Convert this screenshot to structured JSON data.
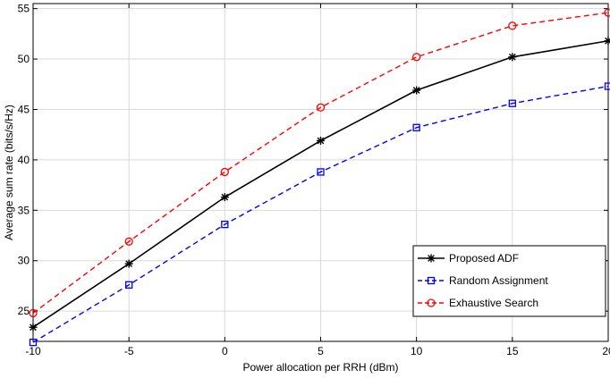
{
  "chart_data": {
    "type": "line",
    "title": "",
    "xlabel": "Power allocation per RRH (dBm)",
    "ylabel": "Average sum rate (bits/s/Hz)",
    "xlim": [
      -10,
      20
    ],
    "ylim": [
      22,
      55.5
    ],
    "xticks": [
      -10,
      -5,
      0,
      5,
      10,
      15,
      20
    ],
    "yticks": [
      25,
      30,
      35,
      40,
      45,
      50,
      55
    ],
    "xtick_labels": [
      "-10",
      "-5",
      "0",
      "5",
      "10",
      "15",
      "20"
    ],
    "ytick_labels": [
      "25",
      "30",
      "35",
      "40",
      "45",
      "50",
      "55"
    ],
    "grid": true,
    "legend_position": "bottom-right",
    "x": [
      -10,
      -5,
      0,
      5,
      10,
      15,
      20
    ],
    "series": [
      {
        "name": "Proposed ADF",
        "values": [
          23.4,
          29.7,
          36.3,
          41.9,
          46.9,
          50.2,
          51.8
        ],
        "color": "#000000",
        "line_style": "solid",
        "marker": "asterisk"
      },
      {
        "name": "Random Assignment",
        "values": [
          21.9,
          27.6,
          33.6,
          38.8,
          43.2,
          45.6,
          47.3
        ],
        "color": "#0000ff",
        "line_style": "dashed",
        "marker": "square"
      },
      {
        "name": "Exhaustive Search",
        "values": [
          24.8,
          31.9,
          38.8,
          45.2,
          50.2,
          53.3,
          54.6
        ],
        "color": "#ff0000",
        "line_style": "dashed",
        "marker": "circle"
      }
    ]
  }
}
